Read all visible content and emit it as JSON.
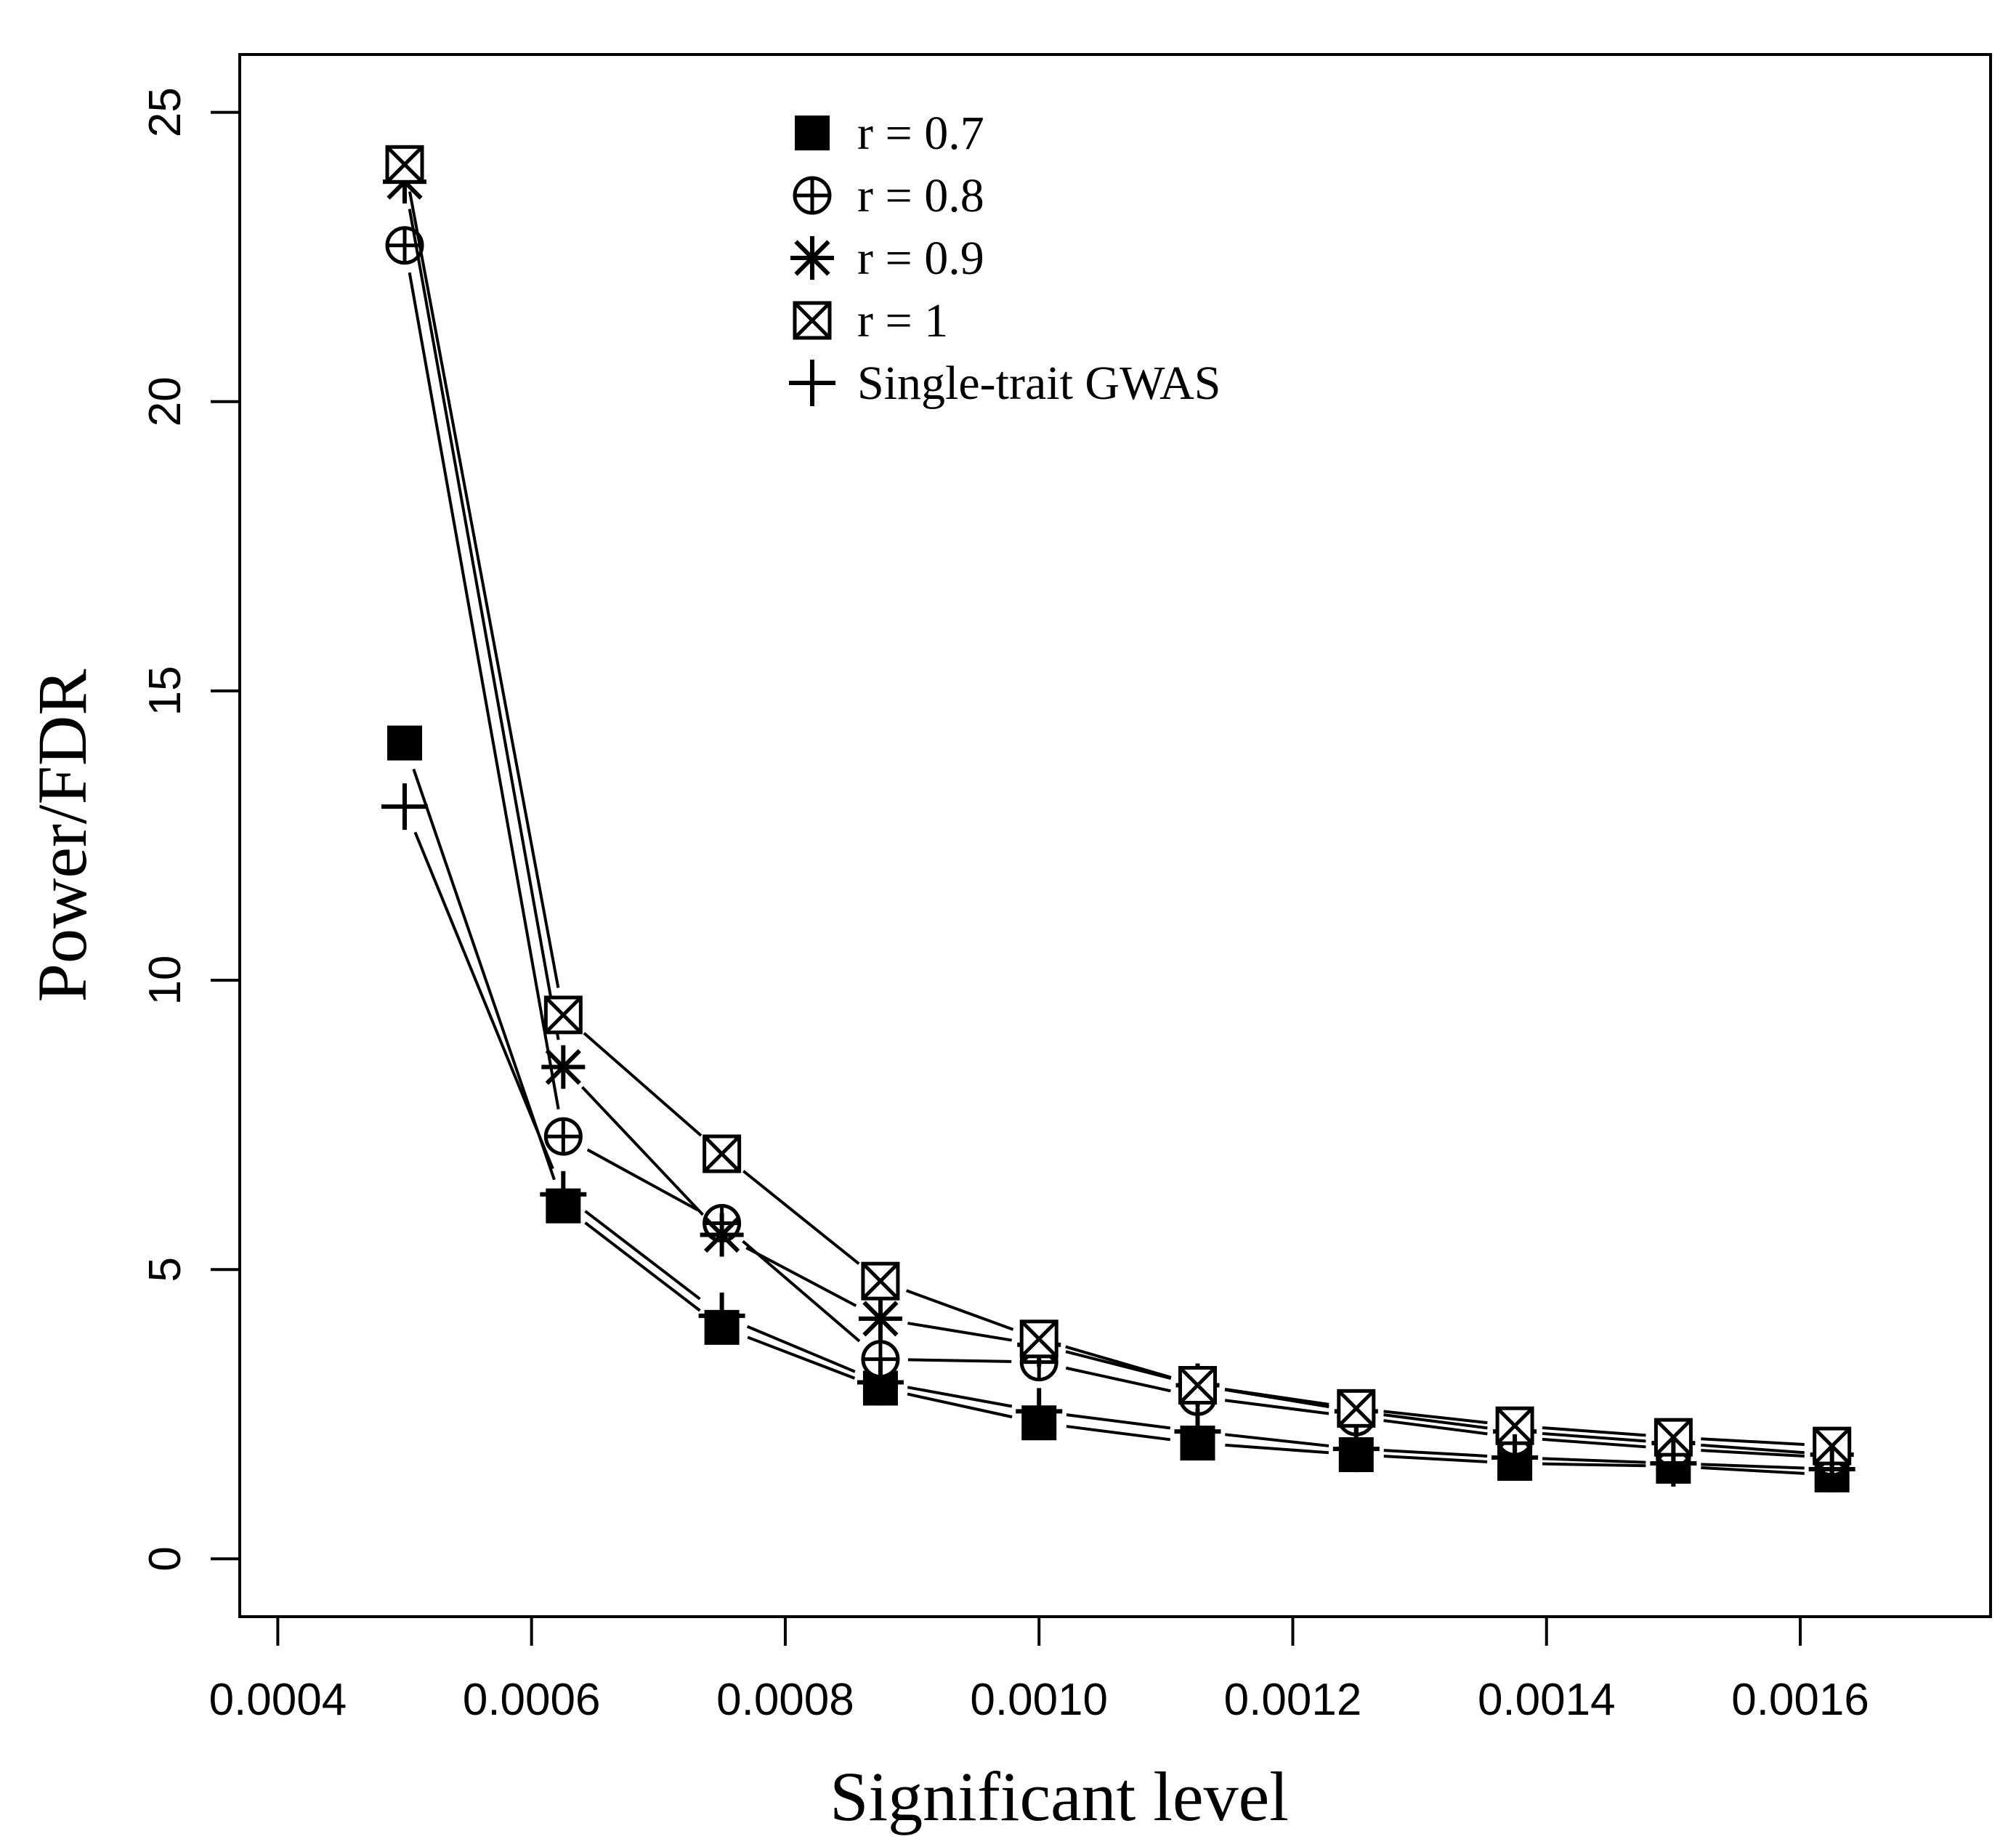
{
  "chart_data": {
    "type": "line",
    "title": "",
    "xlabel": "Significant level",
    "ylabel": "Power/FDR",
    "xlim": [
      0.00037,
      0.00175
    ],
    "ylim": [
      -1,
      26
    ],
    "xticks": [
      0.0004,
      0.0006,
      0.0008,
      0.001,
      0.0012,
      0.0014,
      0.0016
    ],
    "xtick_labels": [
      "0.0004",
      "0.0006",
      "0.0008",
      "0.0010",
      "0.0012",
      "0.0014",
      "0.0016"
    ],
    "yticks": [
      0,
      5,
      10,
      15,
      20,
      25
    ],
    "ytick_labels": [
      "0",
      "5",
      "10",
      "15",
      "20",
      "25"
    ],
    "x": [
      0.0005,
      0.000625,
      0.00075,
      0.000875,
      0.001,
      0.001125,
      0.00125,
      0.001375,
      0.0015,
      0.001625
    ],
    "legend_position": "top-center",
    "grid": false,
    "series": [
      {
        "name": "r = 0.7",
        "marker": "filled-square",
        "values": [
          14.1,
          6.1,
          4.0,
          2.95,
          2.35,
          2.0,
          1.8,
          1.65,
          1.6,
          1.45
        ]
      },
      {
        "name": "r = 0.8",
        "marker": "circle-plus",
        "values": [
          22.7,
          7.3,
          5.8,
          3.45,
          3.4,
          2.8,
          2.45,
          2.1,
          1.9,
          1.75
        ]
      },
      {
        "name": "r = 0.9",
        "marker": "asterisk",
        "values": [
          23.8,
          8.5,
          5.6,
          4.15,
          3.7,
          3.0,
          2.55,
          2.2,
          2.0,
          1.8
        ]
      },
      {
        "name": "r = 1",
        "marker": "boxed-x",
        "values": [
          24.1,
          9.4,
          7.0,
          4.8,
          3.8,
          3.0,
          2.6,
          2.3,
          2.1,
          1.95
        ]
      },
      {
        "name": "Single-trait GWAS",
        "marker": "plus",
        "values": [
          13.0,
          6.3,
          4.2,
          3.05,
          2.55,
          2.2,
          1.9,
          1.75,
          1.65,
          1.55
        ]
      }
    ]
  }
}
